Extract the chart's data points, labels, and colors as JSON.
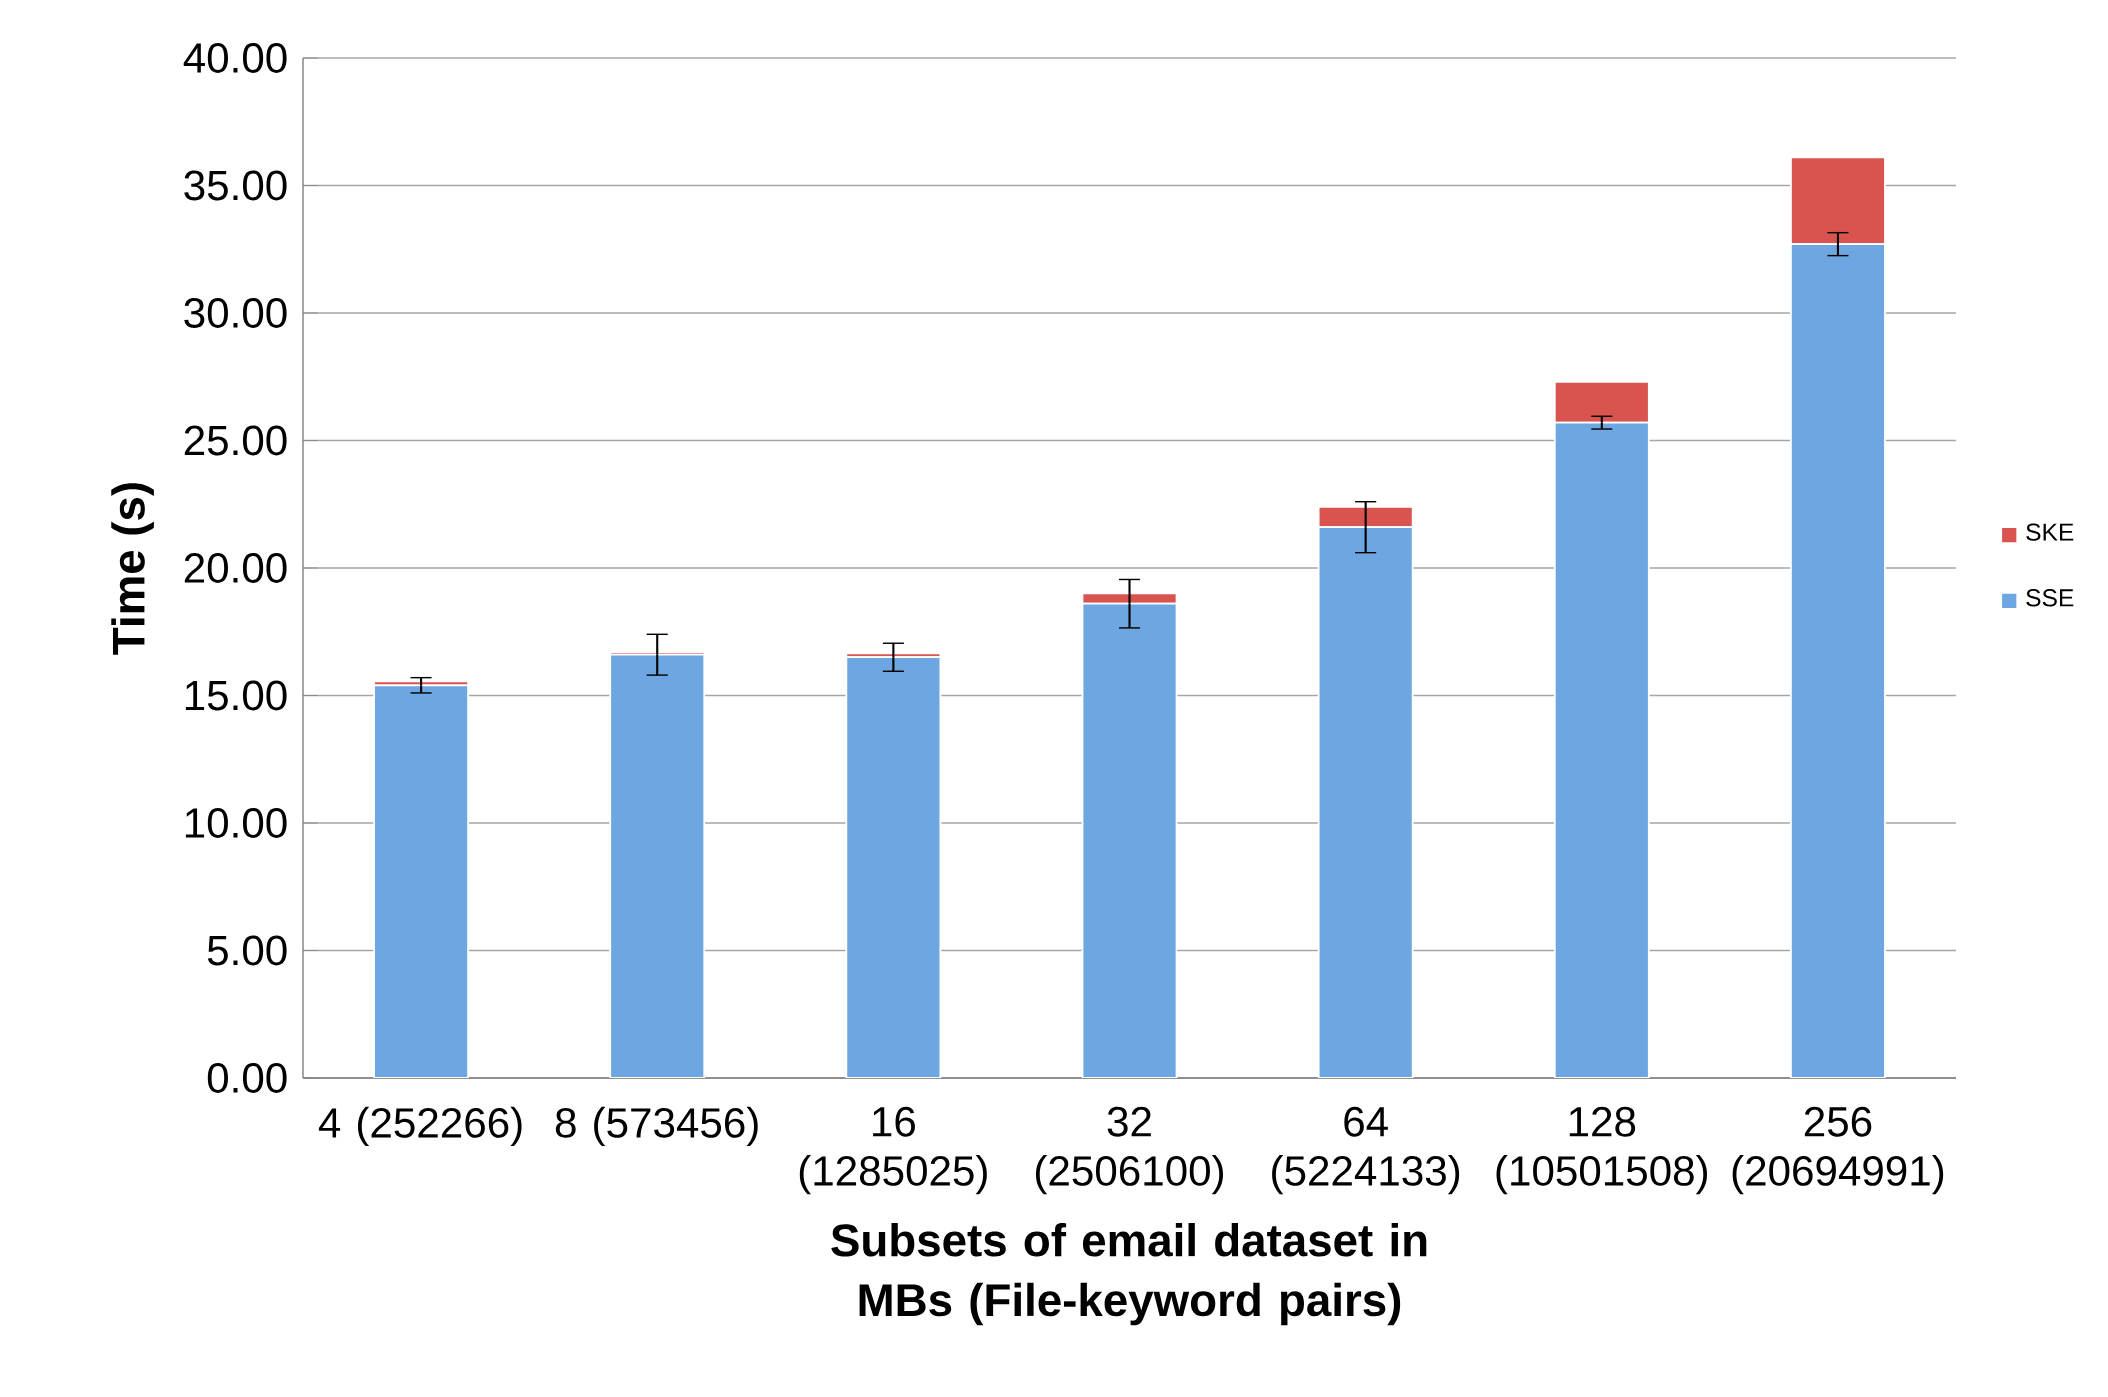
{
  "chart_data": {
    "type": "bar",
    "stacked": true,
    "categories": [
      "4 (252266)",
      "8 (573456)",
      "16 (1285025)",
      "32 (2506100)",
      "64 (5224133)",
      "128 (10501508)",
      "256 (20694991)"
    ],
    "series": [
      {
        "name": "SSE",
        "color": "#6ea6e2",
        "values": [
          15.4,
          16.6,
          16.5,
          18.6,
          21.6,
          25.7,
          32.7
        ],
        "errors": [
          0.3,
          0.8,
          0.55,
          0.95,
          1.0,
          0.25,
          0.45
        ]
      },
      {
        "name": "SKE",
        "color": "#d9534f",
        "values": [
          0.15,
          0.1,
          0.15,
          0.4,
          0.8,
          1.6,
          3.4
        ]
      }
    ],
    "ylabel": "Time (s)",
    "xlabel": "Subsets of email dataset in MBs (File-keyword pairs)",
    "ylim": [
      0,
      40
    ],
    "yticks": [
      {
        "value": 0,
        "label": "0.00"
      },
      {
        "value": 5,
        "label": "5.00"
      },
      {
        "value": 10,
        "label": "10.00"
      },
      {
        "value": 15,
        "label": "15.00"
      },
      {
        "value": 20,
        "label": "20.00"
      },
      {
        "value": 25,
        "label": "25.00"
      },
      {
        "value": 30,
        "label": "30.00"
      },
      {
        "value": 35,
        "label": "35.00"
      },
      {
        "value": 40,
        "label": "40.00"
      }
    ],
    "grid": "y",
    "legend": "right"
  }
}
